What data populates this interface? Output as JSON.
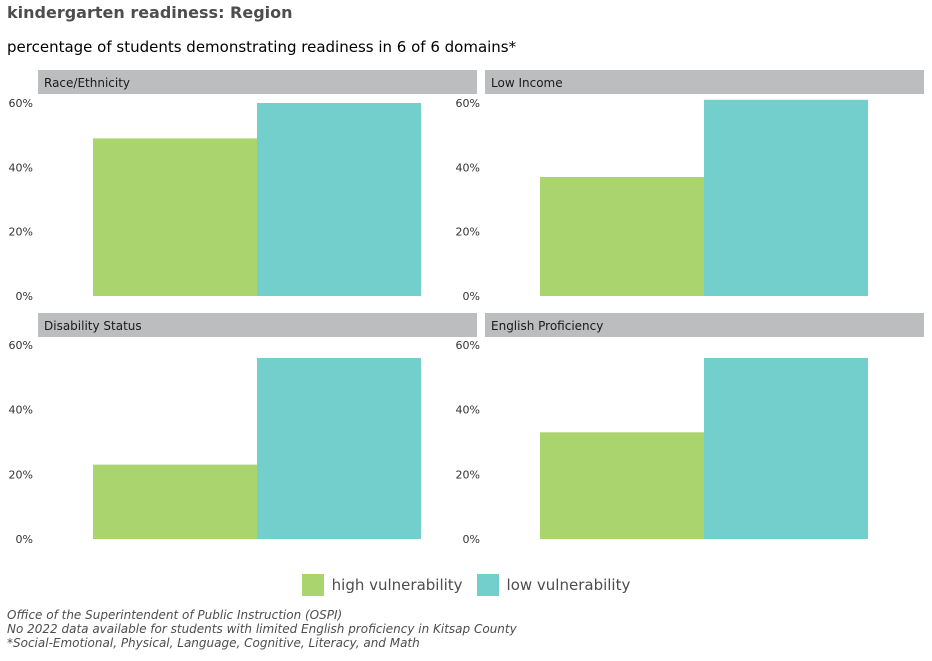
{
  "chart_data": {
    "type": "bar",
    "title": "kindergarten readiness: Region",
    "subtitle": "percentage of students demonstrating readiness in 6 of 6 domains*",
    "ylim": [
      0,
      0.6
    ],
    "yticks": [
      "0%",
      "20%",
      "40%",
      "60%"
    ],
    "grid": false,
    "legend_position": "bottom",
    "series_colors": {
      "high vulnerability": "#aad46e",
      "low vulnerability": "#72cfcb"
    },
    "legend": [
      "high vulnerability",
      "low vulnerability"
    ],
    "facets": [
      {
        "label": "Race/Ethnicity",
        "values": {
          "high vulnerability": 0.49,
          "low vulnerability": 0.6
        }
      },
      {
        "label": "Low Income",
        "values": {
          "high vulnerability": 0.37,
          "low vulnerability": 0.61
        }
      },
      {
        "label": "Disability Status",
        "values": {
          "high vulnerability": 0.23,
          "low vulnerability": 0.56
        }
      },
      {
        "label": "English Proficiency",
        "values": {
          "high vulnerability": 0.33,
          "low vulnerability": 0.56
        }
      }
    ]
  },
  "caption": {
    "line1": "Office of the Superintendent of Public Instruction (OSPI)",
    "line2": "No 2022 data available for students with limited English proficiency in Kitsap County",
    "line3": "*Social-Emotional, Physical, Language, Cognitive, Literacy, and Math"
  },
  "colors": {
    "strip_bg": "#bcbdbf",
    "text_dark": "#4d4d4d",
    "axis_text": "#333333"
  }
}
